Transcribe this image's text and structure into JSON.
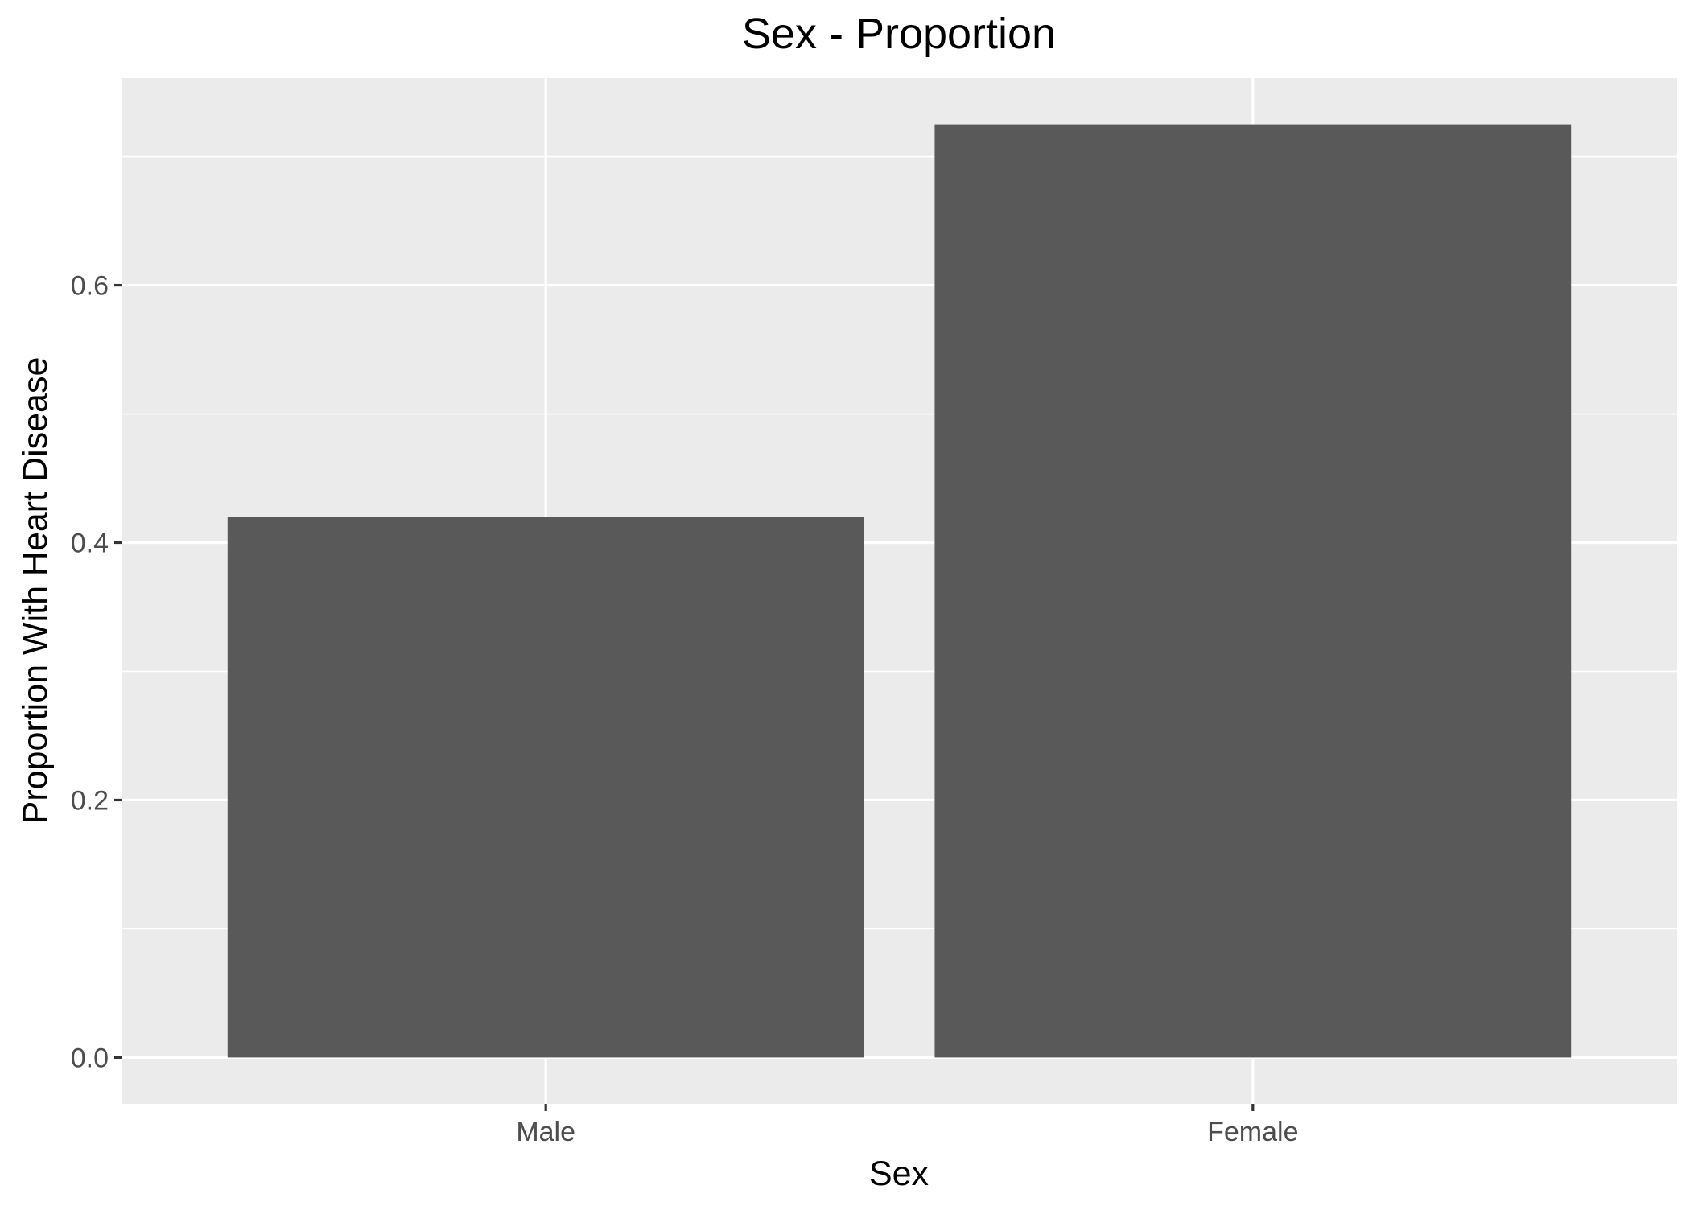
{
  "chart_data": {
    "type": "bar",
    "title": "Sex - Proportion",
    "xlabel": "Sex",
    "ylabel": "Proportion With Heart Disease",
    "categories": [
      "Male",
      "Female"
    ],
    "values": [
      0.42,
      0.725
    ],
    "ylim": [
      -0.036,
      0.761
    ],
    "yticks": [
      0.0,
      0.2,
      0.4,
      0.6
    ],
    "ytick_labels": [
      "0.0",
      "0.2",
      "0.4",
      "0.6"
    ],
    "grid": true,
    "legend": "none",
    "colors": {
      "bar": "#595959",
      "panel": "#ebebeb",
      "grid": "#ffffff",
      "background": "#ffffff"
    }
  }
}
